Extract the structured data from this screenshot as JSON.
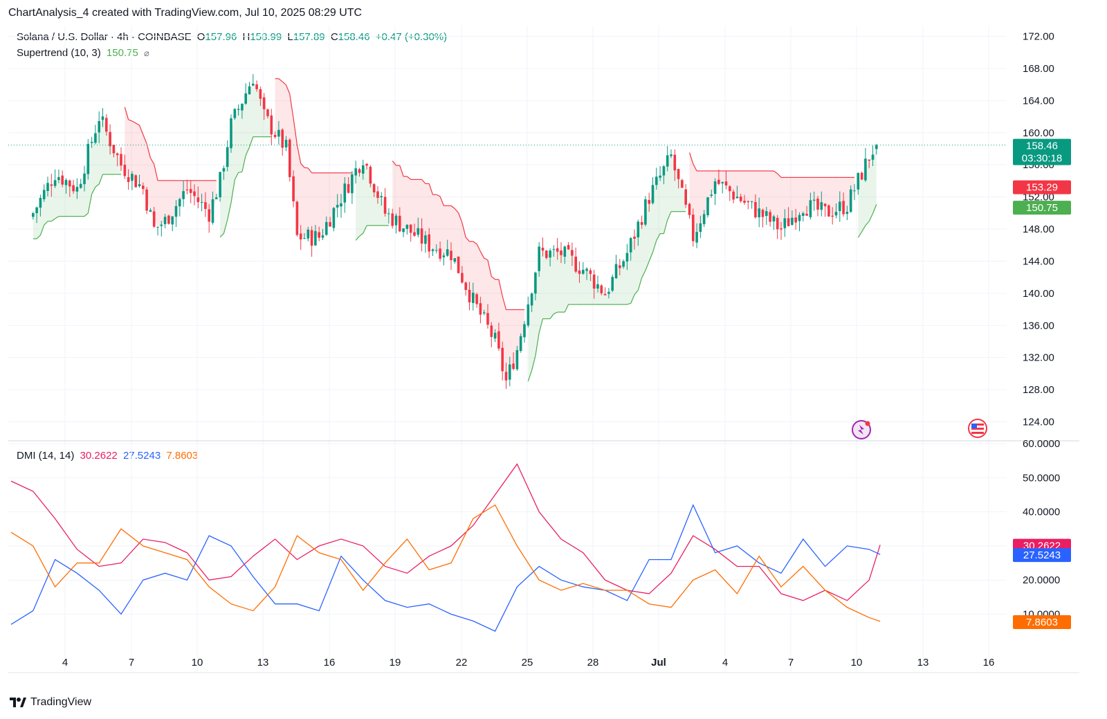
{
  "header": {
    "title": "ChartAnalysis_4 created with TradingView.com, Jul 10, 2025 08:29 UTC"
  },
  "legend": {
    "symbol": "Solana / U.S. Dollar · 4h · COINBASE",
    "o_label": "O",
    "o_value": "157.96",
    "h_label": "H",
    "h_value": "158.99",
    "l_label": "L",
    "l_value": "157.89",
    "c_label": "C",
    "c_value": "158.46",
    "change": "+0.47 (+0.30%)",
    "supertrend_label": "Supertrend (10, 3)",
    "supertrend_value": "150.75",
    "supertrend_eye": "⌀",
    "dmi_label": "DMI (14, 14)",
    "dmi_adx": "30.2622",
    "dmi_plus": "27.5243",
    "dmi_minus": "7.8603"
  },
  "badges": {
    "price": "158.46",
    "countdown": "03:30:18",
    "st_upper": "153.29",
    "st_lower": "150.75",
    "adx": "30.2622",
    "plus_di": "27.5243",
    "minus_di": "7.8603"
  },
  "footer": {
    "brand": "TradingView"
  },
  "colors": {
    "up": "#089981",
    "down": "#f23645",
    "st_up": "#4caf50",
    "st_down": "#f23645",
    "adx": "#e91e63",
    "plus_di": "#2962ff",
    "minus_di": "#ff6d00"
  },
  "chart_data": [
    {
      "type": "candlestick",
      "title": "Solana / U.S. Dollar · 4h · COINBASE",
      "ylim": [
        122,
        174
      ],
      "y_ticks": [
        "172.00",
        "168.00",
        "164.00",
        "160.00",
        "156.00",
        "152.00",
        "148.00",
        "144.00",
        "140.00",
        "136.00",
        "132.00",
        "128.00",
        "124.00"
      ],
      "x_ticks": [
        "4",
        "7",
        "10",
        "13",
        "16",
        "19",
        "22",
        "25",
        "28",
        "Jul",
        "4",
        "7",
        "10",
        "13",
        "16"
      ],
      "current_price": 158.46,
      "approx_close_path": [
        [
          1,
          150
        ],
        [
          2,
          155
        ],
        [
          3,
          153
        ],
        [
          4,
          162
        ],
        [
          5,
          156
        ],
        [
          6,
          153
        ],
        [
          6.5,
          148
        ],
        [
          7,
          149
        ],
        [
          8,
          153
        ],
        [
          9,
          150
        ],
        [
          9.5,
          154
        ],
        [
          10,
          161
        ],
        [
          11,
          167
        ],
        [
          11.5,
          162
        ],
        [
          12,
          160
        ],
        [
          12.5,
          158
        ],
        [
          13,
          147
        ],
        [
          14,
          147
        ],
        [
          15,
          152
        ],
        [
          16,
          157
        ],
        [
          17,
          150
        ],
        [
          18,
          148
        ],
        [
          19,
          146
        ],
        [
          20,
          145
        ],
        [
          21,
          139
        ],
        [
          22,
          134
        ],
        [
          22.5,
          129
        ],
        [
          23,
          133
        ],
        [
          24,
          145
        ],
        [
          25,
          145
        ],
        [
          26,
          143
        ],
        [
          27,
          140
        ],
        [
          28,
          145
        ],
        [
          29,
          152
        ],
        [
          30,
          157
        ],
        [
          30.5,
          152
        ],
        [
          31,
          147
        ],
        [
          32,
          154
        ],
        [
          33,
          152
        ],
        [
          34,
          150
        ],
        [
          35,
          148
        ],
        [
          36,
          151
        ],
        [
          37,
          150
        ],
        [
          38,
          151
        ],
        [
          39,
          157
        ],
        [
          39.3,
          158.46
        ]
      ],
      "series": [
        {
          "name": "Supertrend (10, 3)",
          "last_value": 150.75,
          "upper_band_last": 153.29
        }
      ]
    },
    {
      "type": "line",
      "title": "DMI (14, 14)",
      "ylim": [
        0,
        60
      ],
      "y_ticks": [
        "60.0000",
        "50.0000",
        "40.0000",
        "30.0000",
        "20.0000",
        "10.0000"
      ],
      "series": [
        {
          "name": "ADX",
          "last_value": 30.2622,
          "values": [
            [
              0,
              49
            ],
            [
              1,
              46
            ],
            [
              2,
              38
            ],
            [
              3,
              29
            ],
            [
              4,
              24
            ],
            [
              5,
              25
            ],
            [
              6,
              32
            ],
            [
              7,
              31
            ],
            [
              8,
              28
            ],
            [
              9,
              20
            ],
            [
              10,
              21
            ],
            [
              11,
              27
            ],
            [
              12,
              32
            ],
            [
              13,
              26
            ],
            [
              14,
              30
            ],
            [
              15,
              32
            ],
            [
              16,
              30
            ],
            [
              17,
              24
            ],
            [
              18,
              22
            ],
            [
              19,
              27
            ],
            [
              20,
              30
            ],
            [
              21,
              36
            ],
            [
              22,
              45
            ],
            [
              23,
              54
            ],
            [
              24,
              40
            ],
            [
              25,
              32
            ],
            [
              26,
              28
            ],
            [
              27,
              20
            ],
            [
              28,
              17
            ],
            [
              29,
              16
            ],
            [
              30,
              22
            ],
            [
              31,
              33
            ],
            [
              32,
              29
            ],
            [
              33,
              24
            ],
            [
              34,
              24
            ],
            [
              35,
              16
            ],
            [
              36,
              14
            ],
            [
              37,
              17
            ],
            [
              38,
              14
            ],
            [
              39,
              20
            ],
            [
              39.5,
              30.3
            ]
          ]
        },
        {
          "name": "+DI",
          "last_value": 27.5243,
          "values": [
            [
              0,
              7
            ],
            [
              1,
              11
            ],
            [
              2,
              26
            ],
            [
              3,
              22
            ],
            [
              4,
              17
            ],
            [
              5,
              10
            ],
            [
              6,
              20
            ],
            [
              7,
              22
            ],
            [
              8,
              20
            ],
            [
              9,
              33
            ],
            [
              10,
              30
            ],
            [
              11,
              21
            ],
            [
              12,
              13
            ],
            [
              13,
              13
            ],
            [
              14,
              11
            ],
            [
              15,
              27
            ],
            [
              16,
              20
            ],
            [
              17,
              14
            ],
            [
              18,
              12
            ],
            [
              19,
              13
            ],
            [
              20,
              10
            ],
            [
              21,
              8
            ],
            [
              22,
              5
            ],
            [
              23,
              18
            ],
            [
              24,
              24
            ],
            [
              25,
              20
            ],
            [
              26,
              18
            ],
            [
              27,
              17
            ],
            [
              28,
              14
            ],
            [
              29,
              26
            ],
            [
              30,
              26
            ],
            [
              31,
              42
            ],
            [
              32,
              28
            ],
            [
              33,
              30
            ],
            [
              34,
              25
            ],
            [
              35,
              22
            ],
            [
              36,
              32
            ],
            [
              37,
              24
            ],
            [
              38,
              30
            ],
            [
              39,
              29
            ],
            [
              39.5,
              27.5
            ]
          ]
        },
        {
          "name": "-DI",
          "last_value": 7.8603,
          "values": [
            [
              0,
              34
            ],
            [
              1,
              30
            ],
            [
              2,
              18
            ],
            [
              3,
              25
            ],
            [
              4,
              25
            ],
            [
              5,
              35
            ],
            [
              6,
              30
            ],
            [
              7,
              28
            ],
            [
              8,
              26
            ],
            [
              9,
              18
            ],
            [
              10,
              13
            ],
            [
              11,
              11
            ],
            [
              12,
              18
            ],
            [
              13,
              33
            ],
            [
              14,
              28
            ],
            [
              15,
              26
            ],
            [
              16,
              17
            ],
            [
              17,
              25
            ],
            [
              18,
              32
            ],
            [
              19,
              23
            ],
            [
              20,
              25
            ],
            [
              21,
              38
            ],
            [
              22,
              42
            ],
            [
              23,
              30
            ],
            [
              24,
              20
            ],
            [
              25,
              17
            ],
            [
              26,
              19
            ],
            [
              27,
              17
            ],
            [
              28,
              17
            ],
            [
              29,
              13
            ],
            [
              30,
              12
            ],
            [
              31,
              20
            ],
            [
              32,
              23
            ],
            [
              33,
              16
            ],
            [
              34,
              27
            ],
            [
              35,
              18
            ],
            [
              36,
              24
            ],
            [
              37,
              17
            ],
            [
              38,
              12
            ],
            [
              39,
              9
            ],
            [
              39.5,
              7.9
            ]
          ]
        }
      ]
    }
  ]
}
